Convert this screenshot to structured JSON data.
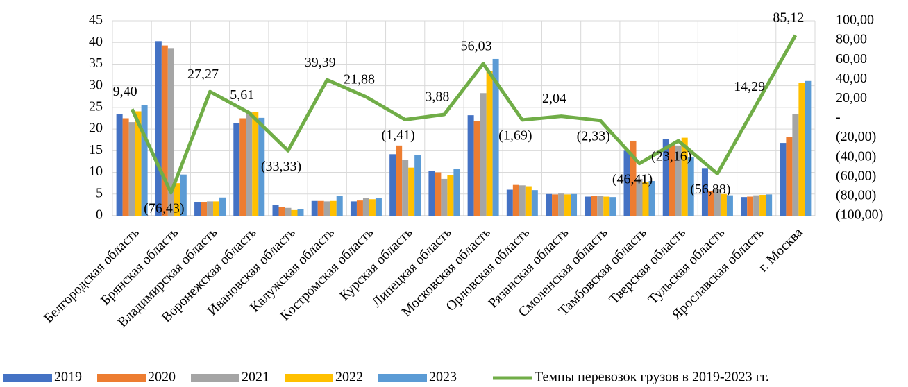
{
  "chart_data": {
    "type": "bar_line",
    "categories": [
      "Белгородская область",
      "Брянская область",
      "Владимирская область",
      "Воронежская область",
      "Ивановская область",
      "Калужская область",
      "Костромская область",
      "Курская область",
      "Липецкая область",
      "Московская область",
      "Орловская область",
      "Рязанская область",
      "Смоленская область",
      "Тамбовская область",
      "Тверская область",
      "Тульская область",
      "Ярославская область",
      "г. Москва"
    ],
    "series": [
      {
        "name": "2019",
        "color": "#4472c4",
        "values": [
          23.4,
          40.3,
          3.2,
          21.4,
          2.4,
          3.4,
          3.3,
          14.2,
          10.4,
          23.2,
          6.0,
          5.0,
          4.4,
          15.0,
          17.7,
          11.0,
          4.3,
          16.8
        ]
      },
      {
        "name": "2020",
        "color": "#ed7d31",
        "values": [
          22.5,
          39.3,
          3.2,
          22.5,
          2.0,
          3.4,
          3.5,
          16.2,
          10.0,
          21.8,
          7.1,
          4.9,
          4.6,
          17.3,
          16.3,
          5.7,
          4.4,
          18.2
        ]
      },
      {
        "name": "2021",
        "color": "#a5a5a5",
        "values": [
          21.6,
          38.7,
          3.3,
          23.9,
          1.8,
          3.3,
          4.0,
          12.9,
          8.5,
          28.3,
          7.0,
          5.1,
          4.5,
          8.5,
          16.2,
          6.1,
          4.7,
          23.5
        ]
      },
      {
        "name": "2022",
        "color": "#ffc000",
        "values": [
          24.1,
          7.5,
          3.3,
          23.9,
          1.3,
          3.4,
          3.8,
          11.1,
          9.4,
          33.4,
          6.8,
          4.9,
          4.4,
          7.7,
          18.0,
          5.0,
          4.8,
          30.6
        ]
      },
      {
        "name": "2023",
        "color": "#5b9bd5",
        "values": [
          25.6,
          9.5,
          4.2,
          22.6,
          1.6,
          4.6,
          4.0,
          14.0,
          10.8,
          36.2,
          5.9,
          5.0,
          4.3,
          8.0,
          13.6,
          4.7,
          4.9,
          31.1
        ]
      },
      {
        "name": "Темпы перевозок грузов в 2019-2023 гг.",
        "color": "#70ad47",
        "axis": "y2",
        "type": "line",
        "values": [
          9.4,
          -76.43,
          27.27,
          5.61,
          -33.33,
          39.39,
          21.88,
          -1.41,
          3.88,
          56.03,
          -1.69,
          2.04,
          -2.33,
          -46.41,
          -23.16,
          -56.88,
          14.29,
          85.12
        ],
        "value_labels": [
          "9,40",
          "(76,43)",
          "27,27",
          "5,61",
          "(33,33)",
          "39,39",
          "21,88",
          "(1,41)",
          "3,88",
          "56,03",
          "(1,69)",
          "2,04",
          "(2,33)",
          "(46,41)",
          "(23,16)",
          "(56,88)",
          "14,29",
          "85,12"
        ]
      }
    ],
    "ylim": [
      0,
      45
    ],
    "yticks": [
      0,
      5,
      10,
      15,
      20,
      25,
      30,
      35,
      40,
      45
    ],
    "y2lim": [
      -100,
      100
    ],
    "y2ticks": [
      {
        "value": -100,
        "label": "(100,00)"
      },
      {
        "value": -80,
        "label": "(80,00)"
      },
      {
        "value": -60,
        "label": "(60,00)"
      },
      {
        "value": -40,
        "label": "(40,00)"
      },
      {
        "value": -20,
        "label": "(20,00)"
      },
      {
        "value": 0,
        "label": "-"
      },
      {
        "value": 20,
        "label": "20,00"
      },
      {
        "value": 40,
        "label": "40,00"
      },
      {
        "value": 60,
        "label": "60,00"
      },
      {
        "value": 80,
        "label": "80,00"
      },
      {
        "value": 100,
        "label": "100,00"
      }
    ],
    "grid": true
  }
}
